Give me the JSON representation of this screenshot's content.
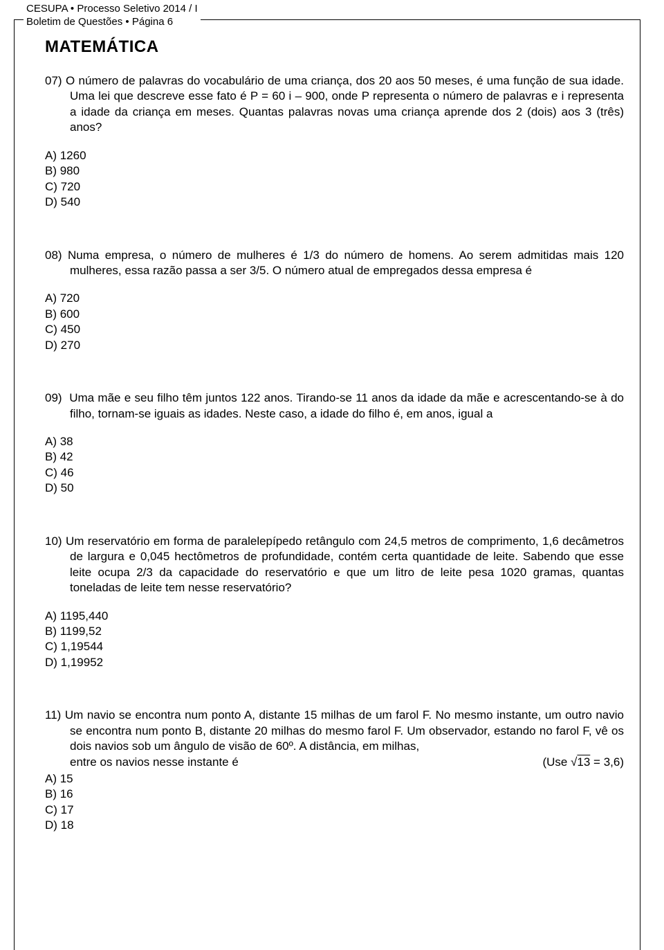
{
  "header": {
    "line1_left": "CESUPA",
    "bullet": "•",
    "line1_right": "Processo Seletivo 2014 / I",
    "line2_left": "Boletim de Questões",
    "line2_right": "Página 6"
  },
  "section_title": "MATEMÁTICA",
  "questions": {
    "q07": {
      "num": "07)",
      "text": "O número de palavras do vocabulário de uma criança, dos 20 aos 50 meses, é uma função de sua idade. Uma lei que descreve esse fato é P = 60 i – 900, onde P representa o número de palavras e i representa a idade da criança em meses. Quantas palavras novas uma criança aprende dos 2 (dois) aos 3 (três) anos?",
      "a": "A)  1260",
      "b": "B)  980",
      "c": "C)  720",
      "d": "D)  540"
    },
    "q08": {
      "num": "08)",
      "text": "Numa empresa, o número de mulheres é 1/3 do número de homens. Ao serem admitidas mais 120 mulheres, essa razão passa a ser  3/5. O número atual de empregados dessa empresa é",
      "a": "A)  720",
      "b": "B)  600",
      "c": "C)  450",
      "d": "D)  270"
    },
    "q09": {
      "num": "09)",
      "text": "Uma mãe e seu filho têm juntos 122 anos. Tirando-se 11 anos da idade da mãe e acrescentando-se à do filho, tornam-se iguais as idades. Neste caso, a idade do filho é, em anos, igual a",
      "a": "A)  38",
      "b": "B)  42",
      "c": "C)  46",
      "d": "D)  50"
    },
    "q10": {
      "num": "10)",
      "text": "Um reservatório em forma de paralelepípedo retângulo com 24,5 metros de comprimento, 1,6 decâmetros de largura e 0,045 hectômetros de profundidade, contém certa quantidade de leite. Sabendo que esse leite ocupa 2/3 da capacidade do reservatório e que um litro de leite pesa 1020 gramas, quantas toneladas de leite tem nesse reservatório?",
      "a": "A)  1195,440",
      "b": "B)  1199,52",
      "c": "C)  1,19544",
      "d": "D)  1,19952"
    },
    "q11": {
      "num": "11)",
      "text": "Um navio se encontra num ponto A, distante 15 milhas de um farol F. No mesmo instante, um outro navio se encontra num ponto B, distante 20 milhas do mesmo farol F. Um observador, estando no farol F, vê os dois navios sob um ângulo de visão de 60º. A distância, em milhas,",
      "extra_left": "entre os navios nesse instante é",
      "extra_right_prefix": "(Use √",
      "extra_right_rad": "13",
      "extra_right_suffix": " = 3,6)",
      "a": "A)  15",
      "b": "B)  16",
      "c": "C)  17",
      "d": "D)  18"
    }
  }
}
